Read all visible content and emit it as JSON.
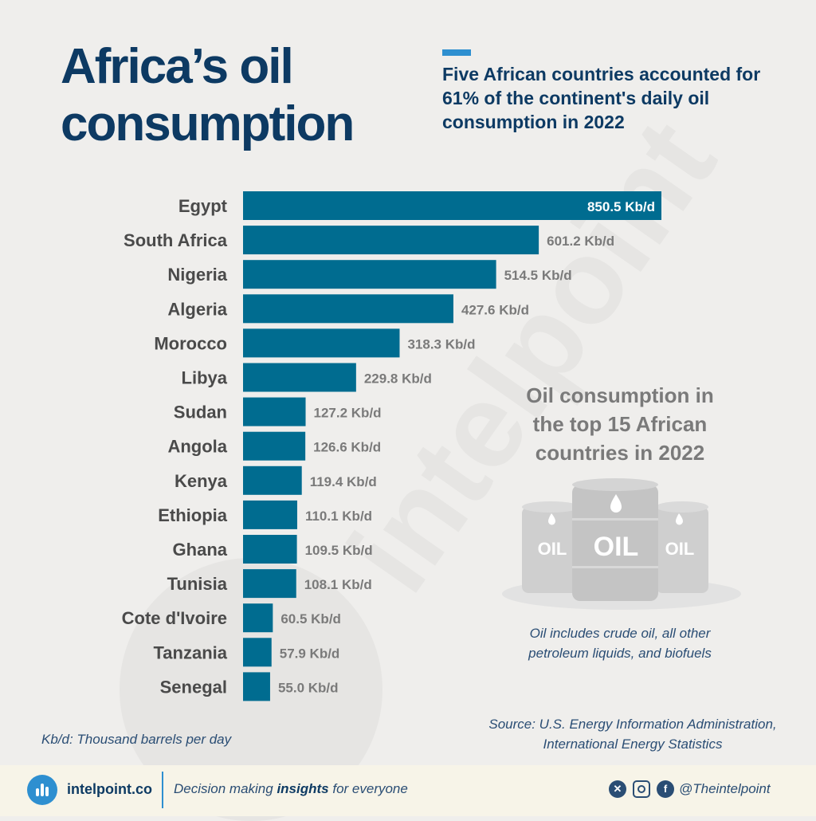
{
  "title": {
    "line1": "Africa’s oil",
    "line2": "consumption"
  },
  "subtitle": "Five African countries accounted for 61% of the continent's daily oil consumption in 2022",
  "colors": {
    "bar": "#006c90",
    "title": "#0d3a63",
    "accent": "#2e8fd0",
    "label": "#4a4a4a",
    "value": "#7a7a7a"
  },
  "chart_data": {
    "type": "bar",
    "orientation": "horizontal",
    "categories": [
      "Egypt",
      "South Africa",
      "Nigeria",
      "Algeria",
      "Morocco",
      "Libya",
      "Sudan",
      "Angola",
      "Kenya",
      "Ethiopia",
      "Ghana",
      "Tunisia",
      "Cote d'Ivoire",
      "Tanzania",
      "Senegal"
    ],
    "values": [
      850.5,
      601.2,
      514.5,
      427.6,
      318.3,
      229.8,
      127.2,
      126.6,
      119.4,
      110.1,
      109.5,
      108.1,
      60.5,
      57.9,
      55.0
    ],
    "value_labels": [
      "850.5 Kb/d",
      "601.2 Kb/d",
      "514.5 Kb/d",
      "427.6 Kb/d",
      "318.3 Kb/d",
      "229.8 Kb/d",
      "127.2 Kb/d",
      "126.6 Kb/d",
      "119.4 Kb/d",
      "110.1 Kb/d",
      "109.5 Kb/d",
      "108.1 Kb/d",
      "60.5 Kb/d",
      "57.9 Kb/d",
      "55.0 Kb/d"
    ],
    "grid": false
  },
  "note": {
    "title_lines": [
      "Oil consumption in",
      "the top 15 African",
      "countries in 2022"
    ],
    "barrel_labels": [
      "OIL",
      "OIL",
      "OIL"
    ],
    "definition_lines": [
      "Oil includes crude oil, all other",
      "petroleum liquids, and biofuels"
    ]
  },
  "unit_note": "Kb/d: Thousand barrels per day",
  "source_lines": [
    "Source: U.S. Energy Information Administration,",
    "International Energy Statistics"
  ],
  "watermark": "intelpoint",
  "footer": {
    "site": "intelpoint.co",
    "tagline_pre": "Decision making ",
    "tagline_bold": "insights",
    "tagline_post": " for everyone",
    "handle": "@Theintelpoint",
    "social_icons": [
      "x-icon",
      "instagram-icon",
      "facebook-icon"
    ]
  }
}
